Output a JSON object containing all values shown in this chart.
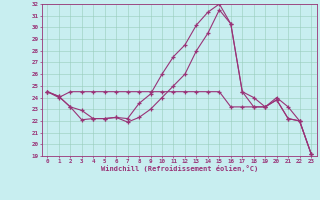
{
  "xlabel": "Windchill (Refroidissement éolien,°C)",
  "background_color": "#c8eef0",
  "line_color": "#993377",
  "hours": [
    0,
    1,
    2,
    3,
    4,
    5,
    6,
    7,
    8,
    9,
    10,
    11,
    12,
    13,
    14,
    15,
    16,
    17,
    18,
    19,
    20,
    21,
    22,
    23
  ],
  "curve1": [
    24.5,
    24.0,
    24.5,
    24.5,
    24.5,
    24.5,
    24.5,
    24.5,
    24.5,
    24.5,
    24.5,
    24.5,
    24.5,
    24.5,
    24.5,
    24.5,
    23.2,
    23.2,
    23.2,
    23.2,
    23.8,
    22.2,
    22.0,
    19.2
  ],
  "curve2": [
    24.5,
    24.1,
    23.2,
    22.1,
    22.2,
    22.2,
    22.3,
    22.2,
    23.5,
    24.3,
    26.0,
    27.5,
    28.5,
    30.2,
    31.3,
    32.0,
    30.3,
    24.5,
    24.0,
    23.2,
    23.8,
    22.2,
    22.0,
    19.2
  ],
  "curve3": [
    24.5,
    24.1,
    23.2,
    22.9,
    22.2,
    22.2,
    22.3,
    21.9,
    22.3,
    23.0,
    24.0,
    25.0,
    26.0,
    28.0,
    29.5,
    31.5,
    30.3,
    24.5,
    23.2,
    23.2,
    24.0,
    23.2,
    22.0,
    19.2
  ],
  "ylim": [
    19,
    32
  ],
  "yticks": [
    19,
    20,
    21,
    22,
    23,
    24,
    25,
    26,
    27,
    28,
    29,
    30,
    31,
    32
  ]
}
